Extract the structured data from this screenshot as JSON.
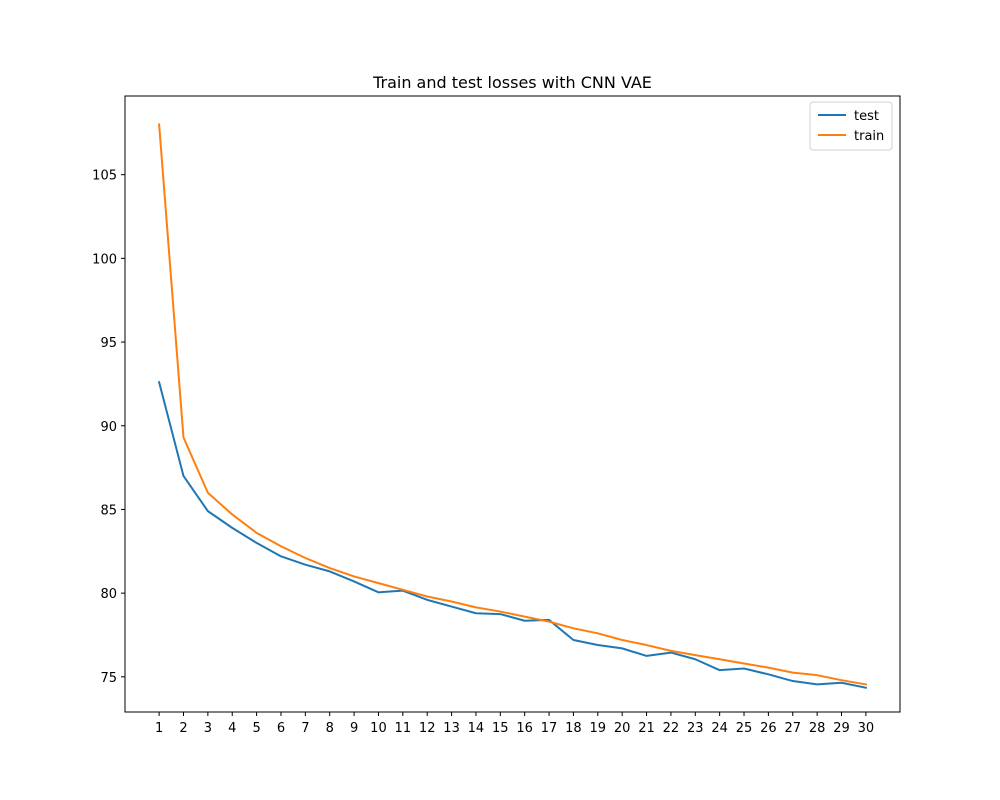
{
  "chart_data": {
    "type": "line",
    "title": "Train and test losses with CNN VAE",
    "xlabel": "",
    "ylabel": "",
    "x": [
      1,
      2,
      3,
      4,
      5,
      6,
      7,
      8,
      9,
      10,
      11,
      12,
      13,
      14,
      15,
      16,
      17,
      18,
      19,
      20,
      21,
      22,
      23,
      24,
      25,
      26,
      27,
      28,
      29,
      30
    ],
    "xlim": [
      -0.4,
      31.4
    ],
    "ylim": [
      72.9,
      109.7
    ],
    "yticks": [
      75,
      80,
      85,
      90,
      95,
      100,
      105
    ],
    "grid": false,
    "legend_position": "top-right",
    "series": [
      {
        "name": "test",
        "color": "#1f77b4",
        "values": [
          92.6,
          87.0,
          84.9,
          83.9,
          83.0,
          82.2,
          81.7,
          81.3,
          80.7,
          80.05,
          80.15,
          79.6,
          79.2,
          78.8,
          78.75,
          78.35,
          78.4,
          77.2,
          76.9,
          76.7,
          76.25,
          76.45,
          76.05,
          75.4,
          75.5,
          75.15,
          74.75,
          74.55,
          74.65,
          74.35
        ]
      },
      {
        "name": "train",
        "color": "#ff7f0e",
        "values": [
          108.0,
          89.3,
          86.0,
          84.7,
          83.6,
          82.8,
          82.1,
          81.5,
          81.0,
          80.6,
          80.2,
          79.8,
          79.5,
          79.15,
          78.9,
          78.6,
          78.3,
          77.9,
          77.6,
          77.2,
          76.9,
          76.55,
          76.3,
          76.05,
          75.8,
          75.55,
          75.25,
          75.1,
          74.8,
          74.55
        ]
      }
    ]
  }
}
